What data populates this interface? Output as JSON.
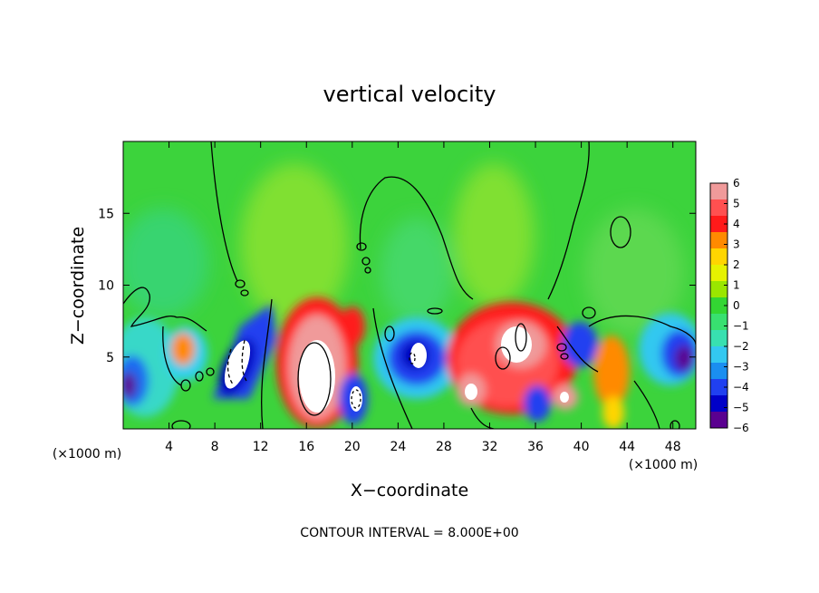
{
  "chart_data": {
    "type": "heatmap",
    "title": "vertical velocity",
    "xlabel": "X−coordinate",
    "ylabel": "Z−coordinate",
    "x_unit": "(×1000 m)",
    "xlim": [
      0,
      50
    ],
    "ylim": [
      0,
      20
    ],
    "x_ticks": [
      4,
      8,
      12,
      16,
      20,
      24,
      28,
      32,
      36,
      40,
      44,
      48
    ],
    "y_ticks": [
      5,
      10,
      15
    ],
    "colorbar": {
      "range": [
        -6,
        6
      ],
      "ticks": [
        "6",
        "5",
        "4",
        "3",
        "2",
        "1",
        "0",
        "−1",
        "−2",
        "−3",
        "−4",
        "−5",
        "−6"
      ],
      "colors": [
        "#f09a9a",
        "#ff5050",
        "#ff1a1a",
        "#ff8a00",
        "#ffd500",
        "#e6f200",
        "#9ae600",
        "#33d633",
        "#38e070",
        "#38e0b0",
        "#33c8f0",
        "#1a8ef0",
        "#2040f0",
        "#0000c8",
        "#5a0090"
      ]
    },
    "zero_contour_x": [
      0,
      9.6,
      12.5,
      23.9,
      28.6,
      36.5,
      41.3,
      50
    ],
    "footer": "CONTOUR INTERVAL = 8.000E+00"
  }
}
